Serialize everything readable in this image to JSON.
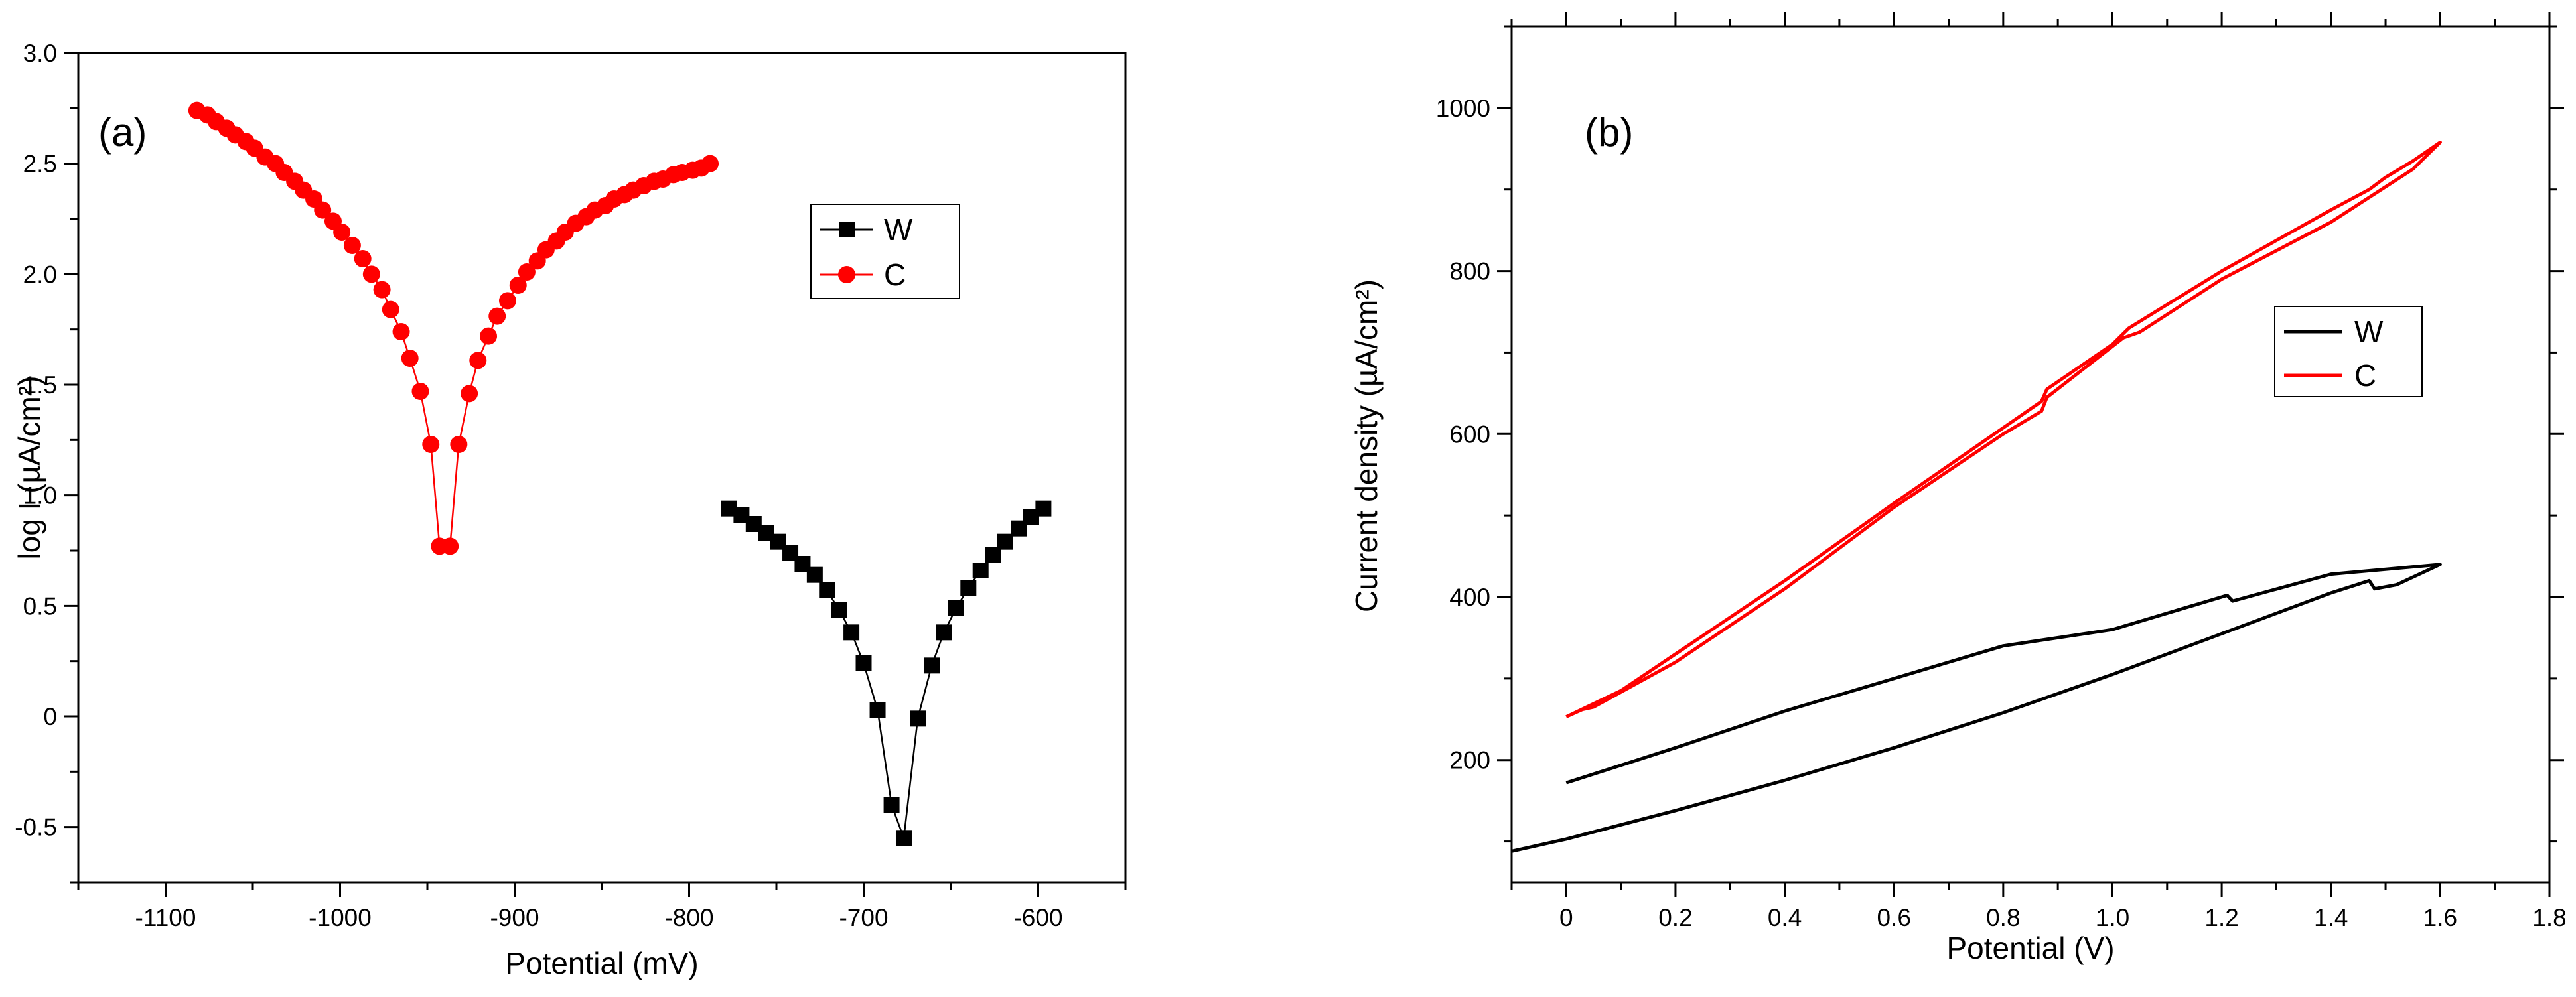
{
  "chart_data": [
    {
      "type": "scatter",
      "panel_label": "(a)",
      "xlabel": "Potential (mV)",
      "ylabel": "log I (µA/cm²)",
      "xlim": [
        -1150,
        -550
      ],
      "ylim": [
        -0.75,
        3.0
      ],
      "xticks": [
        -1100,
        -1000,
        -900,
        -800,
        -700,
        -600
      ],
      "yticks": [
        -0.5,
        0,
        0.5,
        1.0,
        1.5,
        2.0,
        2.5,
        3.0
      ],
      "xtick_labels": [
        "-1100",
        "-1000",
        "-900",
        "-800",
        "-700",
        "-600"
      ],
      "ytick_labels": [
        "-0.5",
        "0",
        "0.5",
        "1.0",
        "1.5",
        "2.0",
        "2.5",
        "3.0"
      ],
      "legend": {
        "position": "right",
        "entries": [
          "W",
          "C"
        ]
      },
      "series": [
        {
          "name": "W",
          "color": "#000000",
          "marker": "square",
          "x": [
            -777,
            -770,
            -763,
            -756,
            -749,
            -742,
            -735,
            -728,
            -721,
            -714,
            -707,
            -700,
            -692,
            -684,
            -677,
            -669,
            -661,
            -654,
            -647,
            -640,
            -633,
            -626,
            -619,
            -611,
            -604,
            -597
          ],
          "y": [
            0.94,
            0.91,
            0.87,
            0.83,
            0.79,
            0.74,
            0.69,
            0.64,
            0.57,
            0.48,
            0.38,
            0.24,
            0.03,
            -0.4,
            -0.55,
            -0.01,
            0.23,
            0.38,
            0.49,
            0.58,
            0.66,
            0.73,
            0.79,
            0.85,
            0.9,
            0.94
          ]
        },
        {
          "name": "C",
          "color": "#ff0000",
          "marker": "circle",
          "x": [
            -1082,
            -1076,
            -1071,
            -1065,
            -1060,
            -1054,
            -1049,
            -1043,
            -1037,
            -1032,
            -1026,
            -1021,
            -1015,
            -1010,
            -1004,
            -999,
            -993,
            -987,
            -982,
            -976,
            -971,
            -965,
            -960,
            -954,
            -948,
            -943,
            -937,
            -932,
            -926,
            -921,
            -915,
            -910,
            -904,
            -898,
            -893,
            -887,
            -882,
            -876,
            -871,
            -865,
            -859,
            -854,
            -848,
            -843,
            -837,
            -832,
            -826,
            -820,
            -815,
            -809,
            -804,
            -798,
            -793,
            -788
          ],
          "y": [
            2.74,
            2.72,
            2.69,
            2.66,
            2.63,
            2.6,
            2.57,
            2.53,
            2.5,
            2.46,
            2.42,
            2.38,
            2.34,
            2.29,
            2.24,
            2.19,
            2.13,
            2.07,
            2.0,
            1.93,
            1.84,
            1.74,
            1.62,
            1.47,
            1.23,
            0.77,
            0.77,
            1.23,
            1.46,
            1.61,
            1.72,
            1.81,
            1.88,
            1.95,
            2.01,
            2.06,
            2.11,
            2.15,
            2.19,
            2.23,
            2.26,
            2.29,
            2.31,
            2.34,
            2.36,
            2.38,
            2.4,
            2.42,
            2.43,
            2.45,
            2.46,
            2.47,
            2.48,
            2.5
          ]
        }
      ]
    },
    {
      "type": "line",
      "panel_label": "(b)",
      "xlabel": "Potential (V)",
      "ylabel": "Current density (µA/cm²)",
      "xlim": [
        -0.1,
        1.8
      ],
      "ylim": [
        50,
        1100
      ],
      "xticks": [
        0,
        0.2,
        0.4,
        0.6,
        0.8,
        1.0,
        1.2,
        1.4,
        1.6,
        1.8
      ],
      "yticks": [
        200,
        400,
        600,
        800,
        1000
      ],
      "xtick_labels": [
        "0",
        "0.2",
        "0.4",
        "0.6",
        "0.8",
        "1.0",
        "1.2",
        "1.4",
        "1.6",
        "1.8"
      ],
      "ytick_labels": [
        "200",
        "400",
        "600",
        "800",
        "1000"
      ],
      "legend": {
        "position": "right",
        "entries": [
          "W",
          "C"
        ]
      },
      "series": [
        {
          "name": "W",
          "color": "#000000",
          "x": [
            -0.1,
            0.0,
            0.2,
            0.4,
            0.6,
            0.8,
            1.0,
            1.2,
            1.4,
            1.47,
            1.48,
            1.52,
            1.6,
            1.4,
            1.22,
            1.21,
            1.0,
            0.8,
            0.6,
            0.4,
            0.2,
            0.0
          ],
          "y": [
            88,
            103,
            138,
            175,
            215,
            258,
            305,
            355,
            405,
            420,
            410,
            415,
            440,
            428,
            395,
            402,
            360,
            340,
            300,
            260,
            215,
            172
          ]
        },
        {
          "name": "C",
          "color": "#ff0000",
          "x": [
            0.0,
            0.1,
            0.2,
            0.4,
            0.6,
            0.87,
            0.88,
            1.0,
            1.03,
            1.2,
            1.4,
            1.47,
            1.5,
            1.55,
            1.6,
            1.55,
            1.4,
            1.2,
            1.05,
            1.02,
            0.88,
            0.87,
            0.8,
            0.6,
            0.4,
            0.2,
            0.05,
            0.03,
            0.0
          ],
          "y": [
            253,
            285,
            330,
            420,
            515,
            640,
            655,
            710,
            730,
            800,
            875,
            900,
            915,
            935,
            958,
            925,
            860,
            790,
            725,
            718,
            645,
            628,
            600,
            510,
            410,
            320,
            265,
            262,
            253
          ]
        }
      ]
    }
  ]
}
